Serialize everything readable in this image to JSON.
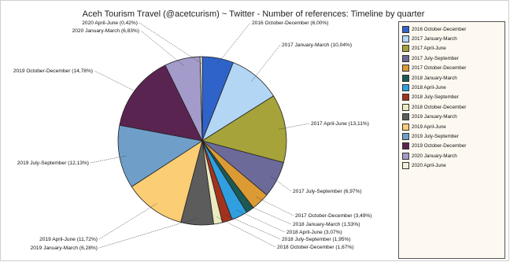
{
  "chart_data": {
    "type": "pie",
    "title": "Aceh Tourism Travel (@acetcurism) ~ Twitter - Number of references: Timeline by quarter",
    "slices": [
      {
        "label": "2016 October-December",
        "value": 6.0,
        "display": "2016 October-December (6,00%)",
        "color": "#2f63c9"
      },
      {
        "label": "2017 January-March",
        "value": 10.04,
        "display": "2017 January-March (10,04%)",
        "color": "#b3d6f5"
      },
      {
        "label": "2017 April-June",
        "value": 13.11,
        "display": "2017 April-June (13,11%)",
        "color": "#a5a33a"
      },
      {
        "label": "2017 July-September",
        "value": 6.97,
        "display": "2017 July-September (6,97%)",
        "color": "#6b6a99"
      },
      {
        "label": "2017 October-December",
        "value": 3.49,
        "display": "2017 October-December (3,49%)",
        "color": "#dc9a34"
      },
      {
        "label": "2018 January-March",
        "value": 1.53,
        "display": "2018 January-March (1,53%)",
        "color": "#1b5a55"
      },
      {
        "label": "2018 April-June",
        "value": 3.07,
        "display": "2018 April-June (3,07%)",
        "color": "#2f9fe0"
      },
      {
        "label": "2018 July-September",
        "value": 1.95,
        "display": "2018 July-September (1,95%)",
        "color": "#a3321d"
      },
      {
        "label": "2018 October-December",
        "value": 1.67,
        "display": "2018 October-December (1,67%)",
        "color": "#ecebc0"
      },
      {
        "label": "2019 January-March",
        "value": 6.28,
        "display": "2019 January-March (6,28%)",
        "color": "#5c5c5c"
      },
      {
        "label": "2019 April-June",
        "value": 11.72,
        "display": "2019 April-June (11,72%)",
        "color": "#fbcd74"
      },
      {
        "label": "2019 July-September",
        "value": 12.13,
        "display": "2019 July-September (12,13%)",
        "color": "#6f9fc9"
      },
      {
        "label": "2019 October-December",
        "value": 14.78,
        "display": "2019 October-December (14,78%)",
        "color": "#5a2450"
      },
      {
        "label": "2020 January-March",
        "value": 6.83,
        "display": "2020 January-March (6,83%)",
        "color": "#a39bc9"
      },
      {
        "label": "2020 April-June",
        "value": 0.42,
        "display": "2020 April-June (0,42%)",
        "color": "#f4eedc"
      }
    ],
    "legend_position": "right"
  }
}
